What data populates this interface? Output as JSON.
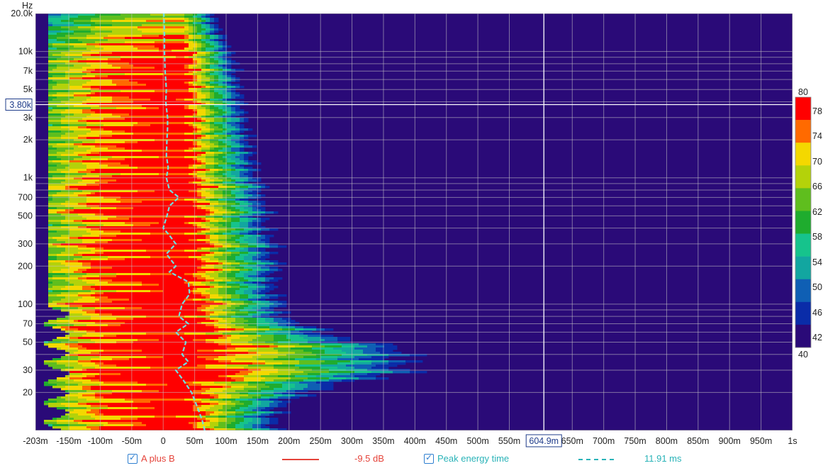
{
  "chart_data": {
    "type": "heatmap",
    "title": "",
    "ylabel": "Hz",
    "xlabel": "",
    "x_unit": "s",
    "xlim": [
      -0.203,
      1.0
    ],
    "ylim": [
      10,
      20000
    ],
    "y_scale": "log",
    "x_ticks": [
      {
        "v": -0.203,
        "label": "-203m"
      },
      {
        "v": -0.15,
        "label": "-150m"
      },
      {
        "v": -0.1,
        "label": "-100m"
      },
      {
        "v": -0.05,
        "label": "-50m"
      },
      {
        "v": 0,
        "label": "0"
      },
      {
        "v": 0.05,
        "label": "50m"
      },
      {
        "v": 0.1,
        "label": "100m"
      },
      {
        "v": 0.15,
        "label": "150m"
      },
      {
        "v": 0.2,
        "label": "200m"
      },
      {
        "v": 0.25,
        "label": "250m"
      },
      {
        "v": 0.3,
        "label": "300m"
      },
      {
        "v": 0.35,
        "label": "350m"
      },
      {
        "v": 0.4,
        "label": "400m"
      },
      {
        "v": 0.45,
        "label": "450m"
      },
      {
        "v": 0.5,
        "label": "500m"
      },
      {
        "v": 0.55,
        "label": "550m"
      },
      {
        "v": 0.65,
        "label": "650m"
      },
      {
        "v": 0.7,
        "label": "700m"
      },
      {
        "v": 0.75,
        "label": "750m"
      },
      {
        "v": 0.8,
        "label": "800m"
      },
      {
        "v": 0.85,
        "label": "850m"
      },
      {
        "v": 0.9,
        "label": "900m"
      },
      {
        "v": 0.95,
        "label": "950m"
      },
      {
        "v": 1.0,
        "label": "1s"
      }
    ],
    "y_ticks": [
      {
        "v": 20,
        "label": "20"
      },
      {
        "v": 30,
        "label": "30"
      },
      {
        "v": 50,
        "label": "50"
      },
      {
        "v": 70,
        "label": "70"
      },
      {
        "v": 100,
        "label": "100"
      },
      {
        "v": 200,
        "label": "200"
      },
      {
        "v": 300,
        "label": "300"
      },
      {
        "v": 500,
        "label": "500"
      },
      {
        "v": 700,
        "label": "700"
      },
      {
        "v": 1000,
        "label": "1k"
      },
      {
        "v": 2000,
        "label": "2k"
      },
      {
        "v": 3000,
        "label": "3k"
      },
      {
        "v": 5000,
        "label": "5k"
      },
      {
        "v": 7000,
        "label": "7k"
      },
      {
        "v": 10000,
        "label": "10k"
      },
      {
        "v": 20000,
        "label": "20.0k"
      }
    ],
    "cursor": {
      "x": 0.6049,
      "x_label": "604.9m",
      "y": 3800,
      "y_label": "3.80k"
    },
    "colorbar": {
      "labels": [
        "80",
        "78",
        "74",
        "70",
        "66",
        "62",
        "58",
        "54",
        "50",
        "46",
        "42",
        "40"
      ],
      "levels": [
        {
          "min": 78,
          "color": "#ff0000"
        },
        {
          "min": 76,
          "color": "#ff6a00"
        },
        {
          "min": 72,
          "color": "#f4d800"
        },
        {
          "min": 68,
          "color": "#b4d20a"
        },
        {
          "min": 64,
          "color": "#5fbe1e"
        },
        {
          "min": 60,
          "color": "#1fac2e"
        },
        {
          "min": 56,
          "color": "#16c38c"
        },
        {
          "min": 52,
          "color": "#12a6a0"
        },
        {
          "min": 48,
          "color": "#0f5fb4"
        },
        {
          "min": 44,
          "color": "#0a2ca8"
        },
        {
          "min": 40,
          "color": "#2a0a78"
        }
      ],
      "background": "#2a0a78"
    },
    "peak_energy_time": {
      "name": "Peak energy time",
      "freqs": [
        10,
        12,
        15,
        20,
        25,
        30,
        35,
        40,
        50,
        60,
        70,
        80,
        100,
        120,
        150,
        180,
        200,
        250,
        300,
        350,
        400,
        500,
        600,
        700,
        800,
        1000,
        1200,
        1500,
        2000,
        2500,
        3000,
        4000,
        5000,
        7000,
        10000,
        15000,
        20000
      ],
      "times": [
        0.066,
        0.062,
        0.055,
        0.045,
        0.032,
        0.02,
        0.04,
        0.03,
        0.036,
        0.02,
        0.04,
        0.025,
        0.03,
        0.042,
        0.04,
        0.01,
        0.02,
        0.005,
        0.02,
        0.01,
        0.0,
        0.006,
        0.01,
        0.025,
        0.01,
        0.005,
        0.008,
        0.005,
        0.006,
        0.007,
        0.007,
        0.004,
        0.005,
        0.003,
        0.002,
        0.002,
        0.001
      ]
    },
    "ridge_bands_hz": [
      28,
      45,
      65,
      100,
      200,
      300,
      550,
      850
    ]
  },
  "legend": {
    "series_a": {
      "label": "A plus B",
      "value": "-9.5 dB",
      "color": "#e5433a"
    },
    "series_b": {
      "label": "Peak energy time",
      "value": "11.91 ms",
      "color": "#2ab3b8"
    }
  }
}
